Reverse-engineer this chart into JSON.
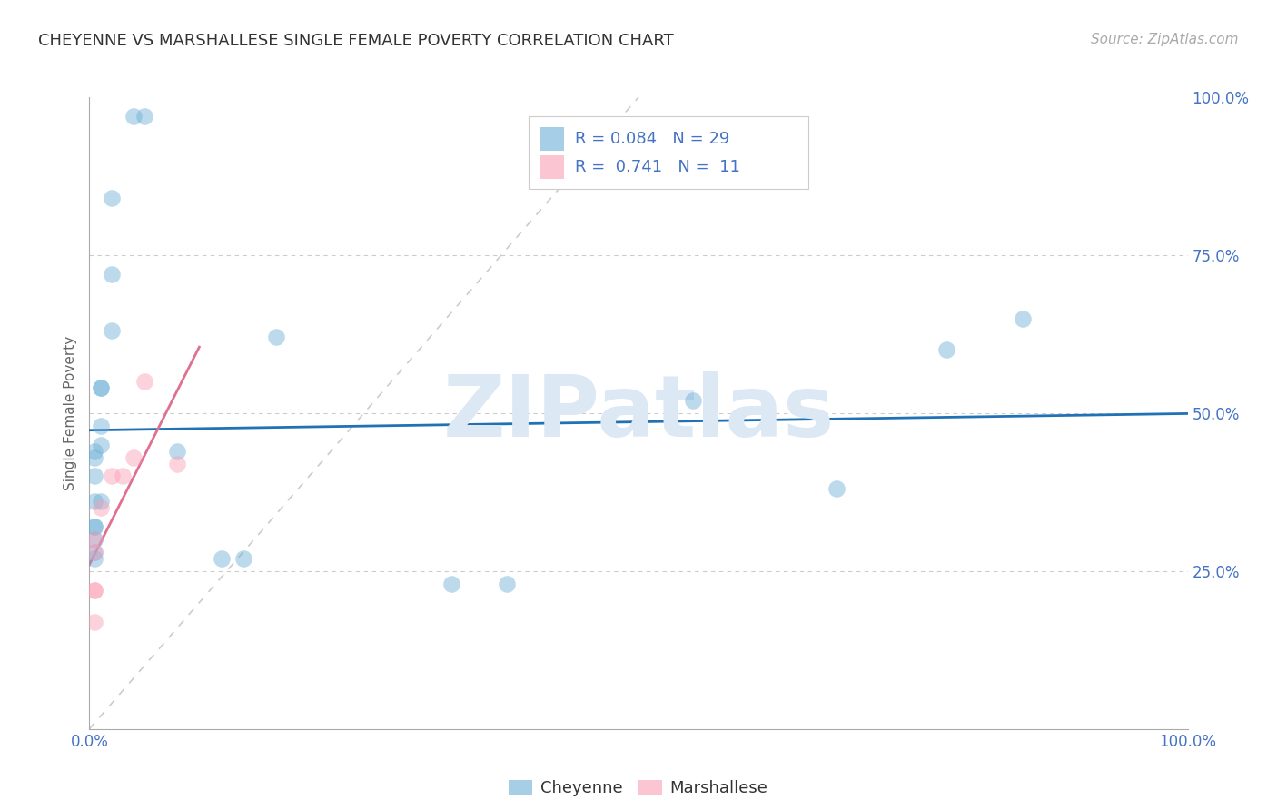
{
  "title": "CHEYENNE VS MARSHALLESE SINGLE FEMALE POVERTY CORRELATION CHART",
  "source": "Source: ZipAtlas.com",
  "ylabel": "Single Female Poverty",
  "xlim": [
    0.0,
    1.0
  ],
  "ylim": [
    0.0,
    1.0
  ],
  "xticks": [
    0.0,
    0.1,
    0.2,
    0.3,
    0.4,
    0.5,
    0.6,
    0.7,
    0.8,
    0.9,
    1.0
  ],
  "xticklabels": [
    "0.0%",
    "",
    "",
    "",
    "",
    "",
    "",
    "",
    "",
    "",
    "100.0%"
  ],
  "ytick_positions": [
    0.0,
    0.25,
    0.5,
    0.75,
    1.0
  ],
  "yticklabels": [
    "",
    "25.0%",
    "50.0%",
    "75.0%",
    "100.0%"
  ],
  "cheyenne_color": "#6baed6",
  "marshallese_color": "#fa9fb5",
  "trend_cheyenne_color": "#2171b5",
  "trend_marshallese_color": "#e07090",
  "diagonal_color": "#cccccc",
  "grid_color": "#cccccc",
  "background_color": "#ffffff",
  "legend_R_cheyenne": "0.084",
  "legend_N_cheyenne": "29",
  "legend_R_marshallese": "0.741",
  "legend_N_marshallese": "11",
  "cheyenne_x": [
    0.02,
    0.04,
    0.05,
    0.02,
    0.02,
    0.01,
    0.01,
    0.01,
    0.01,
    0.005,
    0.005,
    0.005,
    0.01,
    0.005,
    0.005,
    0.005,
    0.005,
    0.08,
    0.12,
    0.14,
    0.17,
    0.33,
    0.38,
    0.55,
    0.68,
    0.78,
    0.85,
    0.005,
    0.005
  ],
  "cheyenne_y": [
    0.84,
    0.97,
    0.97,
    0.72,
    0.63,
    0.54,
    0.54,
    0.48,
    0.45,
    0.43,
    0.4,
    0.36,
    0.36,
    0.32,
    0.32,
    0.3,
    0.28,
    0.44,
    0.27,
    0.27,
    0.62,
    0.23,
    0.23,
    0.52,
    0.38,
    0.6,
    0.65,
    0.44,
    0.27
  ],
  "marshallese_x": [
    0.005,
    0.005,
    0.005,
    0.005,
    0.005,
    0.01,
    0.02,
    0.03,
    0.04,
    0.05,
    0.08
  ],
  "marshallese_y": [
    0.17,
    0.22,
    0.22,
    0.28,
    0.3,
    0.35,
    0.4,
    0.4,
    0.43,
    0.55,
    0.42
  ],
  "watermark": "ZIPatlas",
  "watermark_color": "#dde8f5",
  "marker_size": 180,
  "marker_alpha": 0.45
}
